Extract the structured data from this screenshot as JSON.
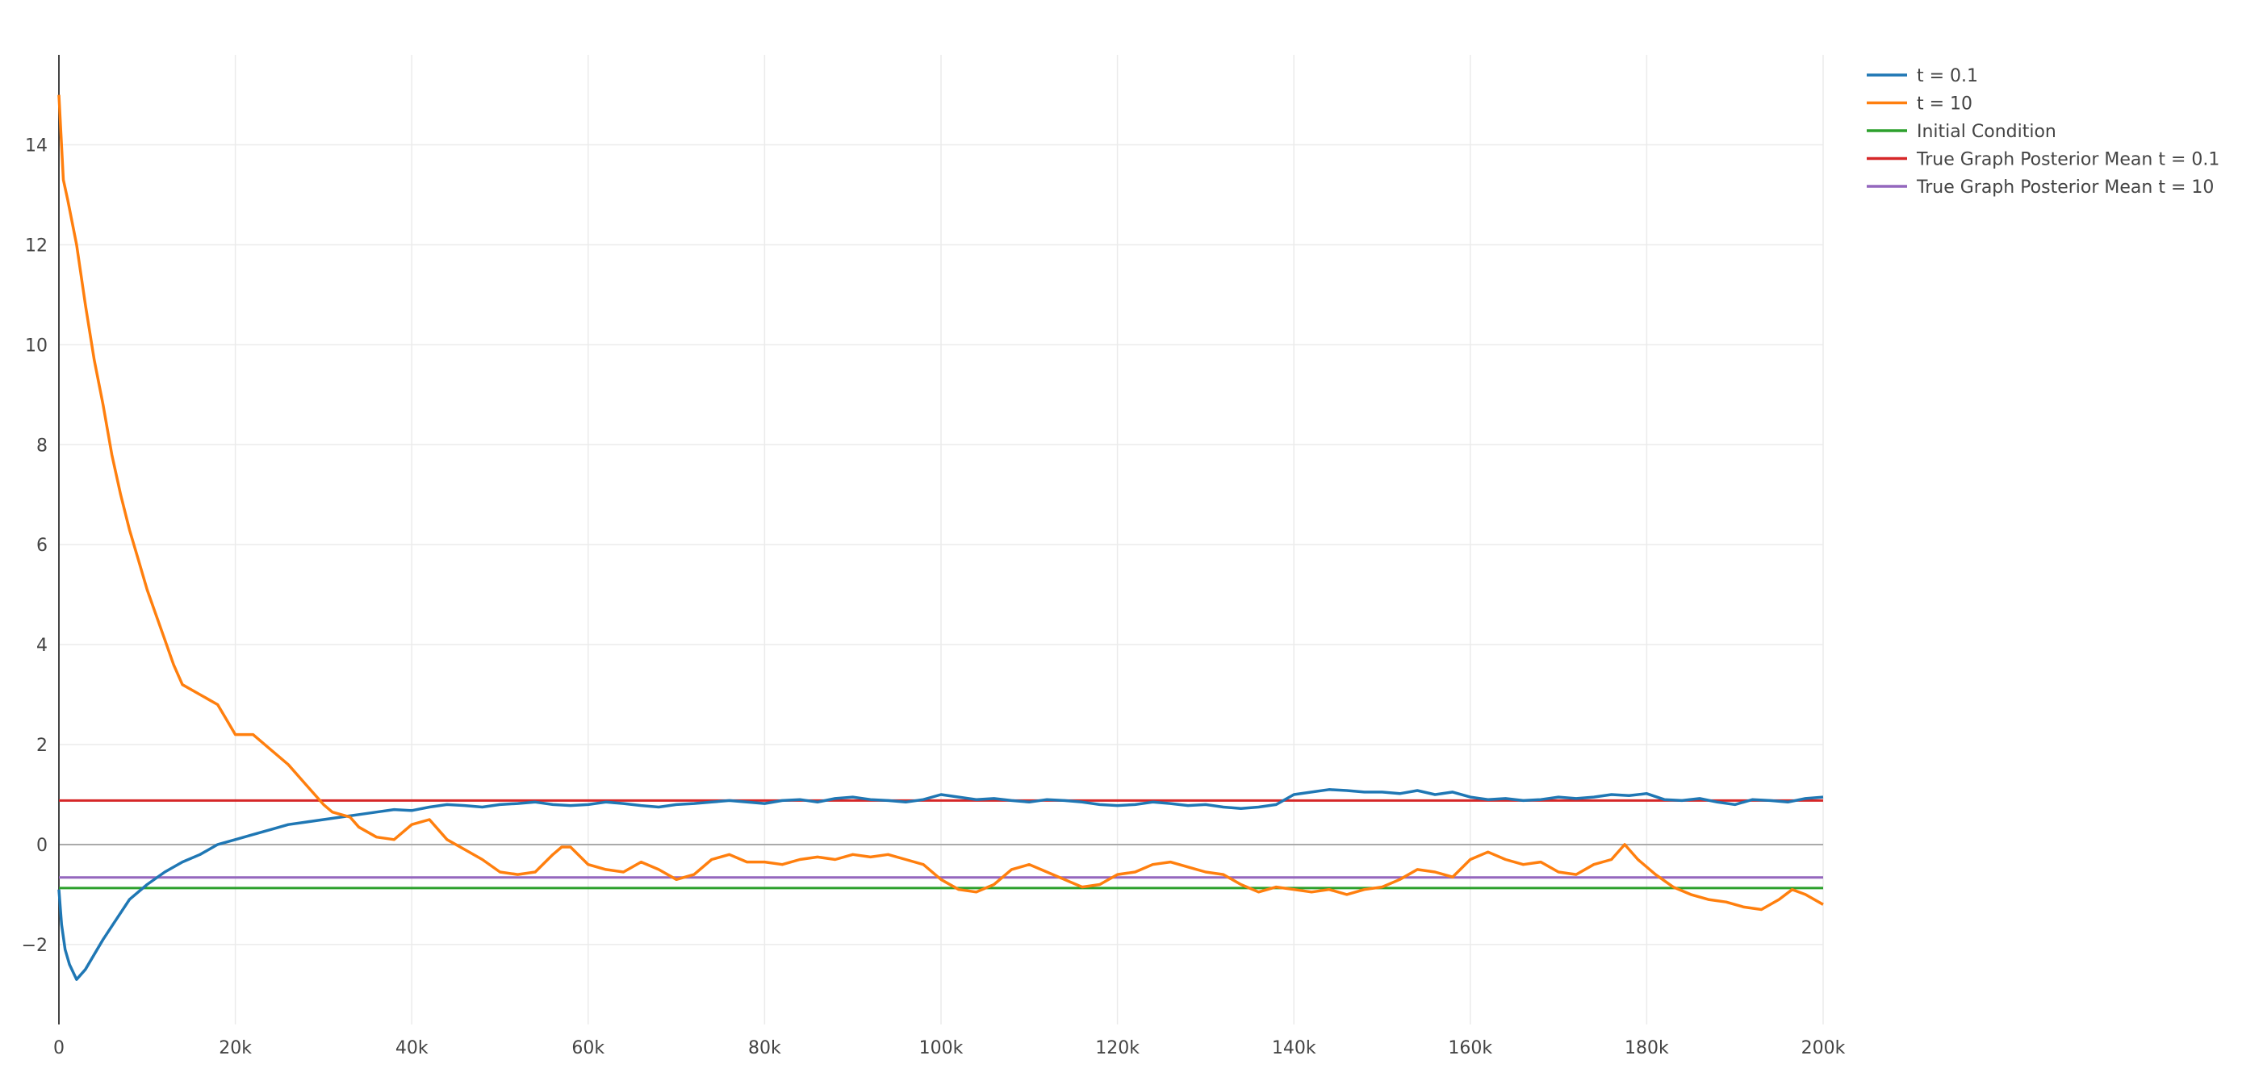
{
  "chart_data": {
    "type": "line",
    "xlim": [
      0,
      200000
    ],
    "ylim": [
      -3.6,
      15.8
    ],
    "grid": true,
    "legend_position": "top-right",
    "x_ticks": [
      {
        "value": 0,
        "label": "0"
      },
      {
        "value": 20000,
        "label": "20k"
      },
      {
        "value": 40000,
        "label": "40k"
      },
      {
        "value": 60000,
        "label": "60k"
      },
      {
        "value": 80000,
        "label": "80k"
      },
      {
        "value": 100000,
        "label": "100k"
      },
      {
        "value": 120000,
        "label": "120k"
      },
      {
        "value": 140000,
        "label": "140k"
      },
      {
        "value": 160000,
        "label": "160k"
      },
      {
        "value": 180000,
        "label": "180k"
      },
      {
        "value": 200000,
        "label": "200k"
      }
    ],
    "y_ticks": [
      {
        "value": -2,
        "label": "−2"
      },
      {
        "value": 0,
        "label": "0"
      },
      {
        "value": 2,
        "label": "2"
      },
      {
        "value": 4,
        "label": "4"
      },
      {
        "value": 6,
        "label": "6"
      },
      {
        "value": 8,
        "label": "8"
      },
      {
        "value": 10,
        "label": "10"
      },
      {
        "value": 12,
        "label": "12"
      },
      {
        "value": 14,
        "label": "14"
      }
    ],
    "series": [
      {
        "name": "t = 0.1",
        "color": "#1f77b4",
        "x": [
          0,
          300,
          700,
          1200,
          2000,
          3000,
          4000,
          5000,
          6500,
          8000,
          10000,
          12000,
          14000,
          16000,
          18000,
          20000,
          22000,
          24000,
          26000,
          28000,
          30000,
          32000,
          34000,
          36000,
          38000,
          40000,
          42000,
          44000,
          46000,
          48000,
          50000,
          52000,
          54000,
          56000,
          58000,
          60000,
          62000,
          64000,
          66000,
          68000,
          70000,
          72000,
          74000,
          76000,
          78000,
          80000,
          82000,
          84000,
          86000,
          88000,
          90000,
          92000,
          94000,
          96000,
          98000,
          100000,
          102000,
          104000,
          106000,
          108000,
          110000,
          112000,
          114000,
          116000,
          118000,
          120000,
          122000,
          124000,
          126000,
          128000,
          130000,
          132000,
          134000,
          136000,
          138000,
          140000,
          142000,
          144000,
          146000,
          148000,
          150000,
          152000,
          154000,
          156000,
          158000,
          160000,
          162000,
          164000,
          166000,
          168000,
          170000,
          172000,
          174000,
          176000,
          178000,
          180000,
          182000,
          184000,
          186000,
          188000,
          190000,
          192000,
          194000,
          196000,
          198000,
          200000
        ],
        "values": [
          -0.9,
          -1.6,
          -2.1,
          -2.4,
          -2.7,
          -2.5,
          -2.2,
          -1.9,
          -1.5,
          -1.1,
          -0.8,
          -0.55,
          -0.35,
          -0.2,
          0.0,
          0.1,
          0.2,
          0.3,
          0.4,
          0.45,
          0.5,
          0.55,
          0.6,
          0.65,
          0.7,
          0.68,
          0.75,
          0.8,
          0.78,
          0.75,
          0.8,
          0.82,
          0.85,
          0.8,
          0.78,
          0.8,
          0.85,
          0.82,
          0.78,
          0.75,
          0.8,
          0.82,
          0.85,
          0.88,
          0.85,
          0.82,
          0.88,
          0.9,
          0.85,
          0.92,
          0.95,
          0.9,
          0.88,
          0.85,
          0.9,
          1.0,
          0.95,
          0.9,
          0.92,
          0.88,
          0.85,
          0.9,
          0.88,
          0.85,
          0.8,
          0.78,
          0.8,
          0.85,
          0.82,
          0.78,
          0.8,
          0.75,
          0.72,
          0.75,
          0.8,
          1.0,
          1.05,
          1.1,
          1.08,
          1.05,
          1.05,
          1.02,
          1.08,
          1.0,
          1.05,
          0.95,
          0.9,
          0.92,
          0.88,
          0.9,
          0.95,
          0.92,
          0.95,
          1.0,
          0.98,
          1.02,
          0.9,
          0.88,
          0.92,
          0.85,
          0.8,
          0.9,
          0.88,
          0.85,
          0.92,
          0.95
        ]
      },
      {
        "name": "t = 10",
        "color": "#ff7f0e",
        "x": [
          0,
          500,
          1000,
          2000,
          3000,
          4000,
          5000,
          6000,
          7000,
          8000,
          9000,
          10000,
          11000,
          12000,
          13000,
          14000,
          15000,
          16000,
          17000,
          18000,
          19000,
          20000,
          22000,
          24000,
          26000,
          28000,
          30000,
          31000,
          32000,
          33000,
          34000,
          36000,
          38000,
          40000,
          42000,
          44000,
          46000,
          48000,
          50000,
          52000,
          54000,
          56000,
          57000,
          58000,
          60000,
          62000,
          64000,
          66000,
          68000,
          70000,
          72000,
          74000,
          76000,
          78000,
          80000,
          82000,
          84000,
          86000,
          88000,
          90000,
          92000,
          94000,
          96000,
          98000,
          100000,
          102000,
          104000,
          106000,
          108000,
          110000,
          112000,
          114000,
          116000,
          118000,
          120000,
          122000,
          124000,
          126000,
          128000,
          130000,
          132000,
          134000,
          136000,
          138000,
          140000,
          142000,
          144000,
          146000,
          148000,
          150000,
          152000,
          154000,
          156000,
          158000,
          160000,
          162000,
          164000,
          166000,
          168000,
          170000,
          172000,
          174000,
          176000,
          177500,
          179000,
          181000,
          183000,
          185000,
          187000,
          189000,
          191000,
          193000,
          195000,
          196500,
          198000,
          200000
        ],
        "values": [
          15.0,
          13.3,
          12.9,
          12.0,
          10.8,
          9.7,
          8.8,
          7.8,
          7.0,
          6.3,
          5.7,
          5.1,
          4.6,
          4.1,
          3.6,
          3.2,
          3.1,
          3.0,
          2.9,
          2.8,
          2.5,
          2.2,
          2.2,
          1.9,
          1.6,
          1.2,
          0.8,
          0.65,
          0.6,
          0.55,
          0.35,
          0.15,
          0.1,
          0.4,
          0.5,
          0.1,
          -0.1,
          -0.3,
          -0.55,
          -0.6,
          -0.55,
          -0.2,
          -0.05,
          -0.05,
          -0.4,
          -0.5,
          -0.55,
          -0.35,
          -0.5,
          -0.7,
          -0.6,
          -0.3,
          -0.2,
          -0.35,
          -0.35,
          -0.4,
          -0.3,
          -0.25,
          -0.3,
          -0.2,
          -0.25,
          -0.2,
          -0.3,
          -0.4,
          -0.7,
          -0.9,
          -0.95,
          -0.8,
          -0.5,
          -0.4,
          -0.55,
          -0.7,
          -0.85,
          -0.8,
          -0.6,
          -0.55,
          -0.4,
          -0.35,
          -0.45,
          -0.55,
          -0.6,
          -0.8,
          -0.95,
          -0.85,
          -0.9,
          -0.95,
          -0.9,
          -1.0,
          -0.9,
          -0.85,
          -0.7,
          -0.5,
          -0.55,
          -0.65,
          -0.3,
          -0.15,
          -0.3,
          -0.4,
          -0.35,
          -0.55,
          -0.6,
          -0.4,
          -0.3,
          0.0,
          -0.3,
          -0.6,
          -0.85,
          -1.0,
          -1.1,
          -1.15,
          -1.25,
          -1.3,
          -1.1,
          -0.9,
          -1.0,
          -1.2
        ]
      },
      {
        "name": "Initial Condition",
        "color": "#2ca02c",
        "x": [
          0,
          200000
        ],
        "values": [
          -0.87,
          -0.87
        ]
      },
      {
        "name": "True Graph Posterior Mean t = 0.1",
        "color": "#d62728",
        "x": [
          0,
          200000
        ],
        "values": [
          0.88,
          0.88
        ]
      },
      {
        "name": "True Graph Posterior Mean t = 10",
        "color": "#9467bd",
        "x": [
          0,
          200000
        ],
        "values": [
          -0.66,
          -0.66
        ]
      }
    ]
  }
}
